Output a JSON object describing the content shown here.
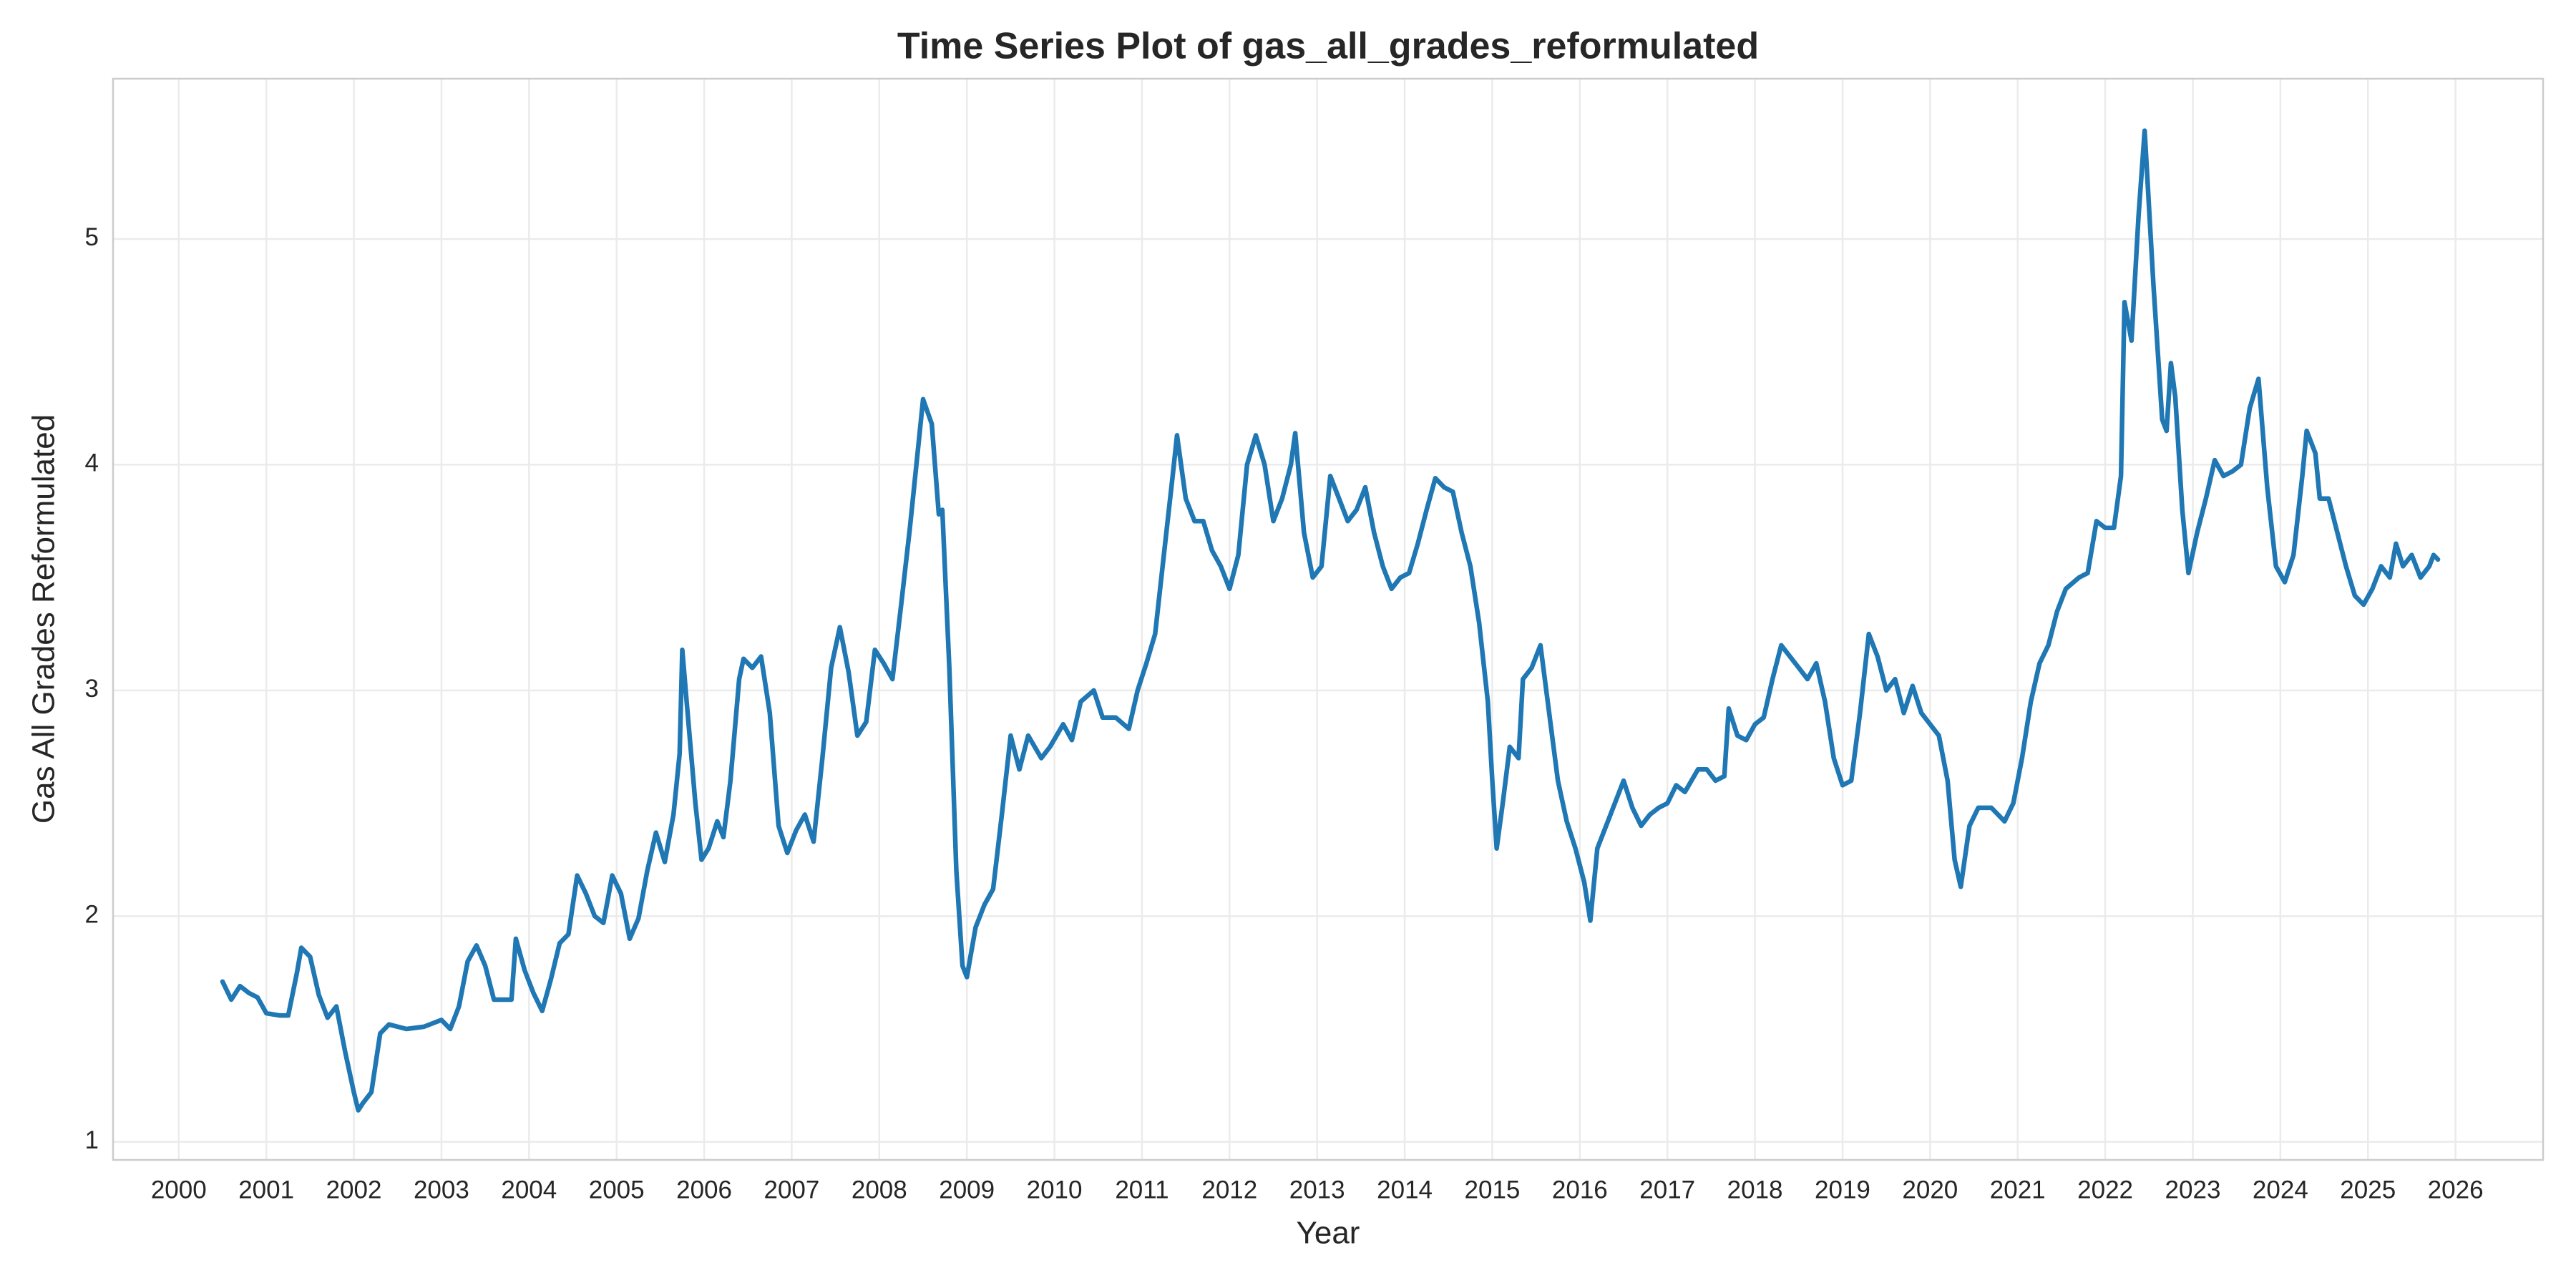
{
  "chart_data": {
    "type": "line",
    "title": "Time Series Plot of gas_all_grades_reformulated",
    "x_label": "Year",
    "y_label": "Gas All Grades Reformulated",
    "color": "#1f77b4",
    "grid": true,
    "xlim": [
      1999.25,
      2027.0
    ],
    "ylim": [
      0.92,
      5.71
    ],
    "xticks": [
      2000,
      2001,
      2002,
      2003,
      2004,
      2005,
      2006,
      2007,
      2008,
      2009,
      2010,
      2011,
      2012,
      2013,
      2014,
      2015,
      2016,
      2017,
      2018,
      2019,
      2020,
      2021,
      2022,
      2023,
      2024,
      2025,
      2026
    ],
    "yticks": [
      1,
      2,
      3,
      4,
      5
    ],
    "x": [
      2000.5,
      2000.6,
      2000.7,
      2000.8,
      2000.9,
      2001.0,
      2001.15,
      2001.25,
      2001.35,
      2001.4,
      2001.5,
      2001.6,
      2001.7,
      2001.8,
      2001.9,
      2002.0,
      2002.05,
      2002.1,
      2002.2,
      2002.3,
      2002.4,
      2002.6,
      2002.8,
      2003.0,
      2003.1,
      2003.2,
      2003.3,
      2003.4,
      2003.5,
      2003.6,
      2003.7,
      2003.8,
      2003.85,
      2003.95,
      2004.05,
      2004.15,
      2004.25,
      2004.35,
      2004.45,
      2004.55,
      2004.65,
      2004.75,
      2004.85,
      2004.95,
      2005.05,
      2005.15,
      2005.25,
      2005.35,
      2005.45,
      2005.55,
      2005.65,
      2005.72,
      2005.75,
      2005.8,
      2005.9,
      2005.97,
      2006.05,
      2006.15,
      2006.22,
      2006.3,
      2006.4,
      2006.45,
      2006.55,
      2006.65,
      2006.75,
      2006.85,
      2006.95,
      2007.05,
      2007.15,
      2007.25,
      2007.35,
      2007.45,
      2007.55,
      2007.65,
      2007.75,
      2007.85,
      2007.95,
      2008.05,
      2008.15,
      2008.25,
      2008.35,
      2008.45,
      2008.5,
      2008.6,
      2008.68,
      2008.72,
      2008.8,
      2008.88,
      2008.95,
      2009.0,
      2009.1,
      2009.2,
      2009.3,
      2009.4,
      2009.5,
      2009.6,
      2009.7,
      2009.85,
      2009.95,
      2010.1,
      2010.2,
      2010.3,
      2010.45,
      2010.55,
      2010.7,
      2010.85,
      2010.95,
      2011.05,
      2011.15,
      2011.25,
      2011.35,
      2011.4,
      2011.5,
      2011.6,
      2011.7,
      2011.8,
      2011.9,
      2012.0,
      2012.1,
      2012.2,
      2012.3,
      2012.4,
      2012.5,
      2012.6,
      2012.7,
      2012.75,
      2012.85,
      2012.95,
      2013.05,
      2013.15,
      2013.25,
      2013.35,
      2013.45,
      2013.55,
      2013.65,
      2013.75,
      2013.85,
      2013.95,
      2014.05,
      2014.15,
      2014.25,
      2014.35,
      2014.45,
      2014.55,
      2014.65,
      2014.75,
      2014.85,
      2014.95,
      2015.0,
      2015.05,
      2015.12,
      2015.2,
      2015.3,
      2015.35,
      2015.45,
      2015.55,
      2015.65,
      2015.75,
      2015.85,
      2015.95,
      2016.05,
      2016.12,
      2016.2,
      2016.3,
      2016.4,
      2016.5,
      2016.6,
      2016.7,
      2016.8,
      2016.9,
      2017.0,
      2017.1,
      2017.2,
      2017.35,
      2017.45,
      2017.55,
      2017.65,
      2017.7,
      2017.8,
      2017.9,
      2018.0,
      2018.1,
      2018.2,
      2018.3,
      2018.4,
      2018.5,
      2018.6,
      2018.7,
      2018.8,
      2018.9,
      2019.0,
      2019.1,
      2019.2,
      2019.3,
      2019.4,
      2019.5,
      2019.6,
      2019.7,
      2019.8,
      2019.9,
      2020.0,
      2020.1,
      2020.2,
      2020.28,
      2020.35,
      2020.45,
      2020.55,
      2020.7,
      2020.85,
      2020.95,
      2021.05,
      2021.15,
      2021.25,
      2021.35,
      2021.45,
      2021.55,
      2021.7,
      2021.8,
      2021.9,
      2022.0,
      2022.1,
      2022.18,
      2022.22,
      2022.3,
      2022.38,
      2022.45,
      2022.55,
      2022.65,
      2022.7,
      2022.75,
      2022.8,
      2022.88,
      2022.95,
      2023.05,
      2023.15,
      2023.25,
      2023.35,
      2023.45,
      2023.55,
      2023.65,
      2023.75,
      2023.85,
      2023.95,
      2024.05,
      2024.15,
      2024.25,
      2024.3,
      2024.4,
      2024.45,
      2024.55,
      2024.65,
      2024.75,
      2024.85,
      2024.95,
      2025.05,
      2025.15,
      2025.25,
      2025.32,
      2025.4,
      2025.5,
      2025.6,
      2025.7,
      2025.75,
      2025.8
    ],
    "values": [
      1.71,
      1.63,
      1.69,
      1.66,
      1.64,
      1.57,
      1.56,
      1.56,
      1.75,
      1.86,
      1.82,
      1.65,
      1.55,
      1.6,
      1.4,
      1.22,
      1.14,
      1.17,
      1.22,
      1.48,
      1.52,
      1.5,
      1.51,
      1.54,
      1.5,
      1.6,
      1.8,
      1.87,
      1.78,
      1.63,
      1.63,
      1.63,
      1.9,
      1.76,
      1.66,
      1.58,
      1.72,
      1.88,
      1.92,
      2.18,
      2.1,
      2.0,
      1.97,
      2.18,
      2.1,
      1.9,
      1.99,
      2.2,
      2.37,
      2.24,
      2.45,
      2.72,
      3.18,
      2.95,
      2.5,
      2.25,
      2.3,
      2.42,
      2.35,
      2.6,
      3.05,
      3.14,
      3.1,
      3.15,
      2.9,
      2.4,
      2.28,
      2.38,
      2.45,
      2.33,
      2.7,
      3.1,
      3.28,
      3.08,
      2.8,
      2.86,
      3.18,
      3.12,
      3.05,
      3.38,
      3.72,
      4.1,
      4.29,
      4.18,
      3.78,
      3.8,
      3.1,
      2.2,
      1.78,
      1.73,
      1.95,
      2.05,
      2.12,
      2.45,
      2.8,
      2.65,
      2.8,
      2.7,
      2.75,
      2.85,
      2.78,
      2.95,
      3.0,
      2.88,
      2.88,
      2.83,
      3.0,
      3.12,
      3.25,
      3.6,
      3.95,
      4.13,
      3.85,
      3.75,
      3.75,
      3.62,
      3.55,
      3.45,
      3.6,
      4.0,
      4.13,
      4.0,
      3.75,
      3.85,
      4.0,
      4.14,
      3.7,
      3.5,
      3.55,
      3.95,
      3.85,
      3.75,
      3.8,
      3.9,
      3.7,
      3.55,
      3.45,
      3.5,
      3.52,
      3.65,
      3.8,
      3.94,
      3.9,
      3.88,
      3.7,
      3.55,
      3.3,
      2.95,
      2.6,
      2.3,
      2.5,
      2.75,
      2.7,
      3.05,
      3.1,
      3.2,
      2.9,
      2.6,
      2.42,
      2.3,
      2.15,
      1.98,
      2.3,
      2.4,
      2.5,
      2.6,
      2.48,
      2.4,
      2.45,
      2.48,
      2.5,
      2.58,
      2.55,
      2.65,
      2.65,
      2.6,
      2.62,
      2.92,
      2.8,
      2.78,
      2.85,
      2.88,
      3.05,
      3.2,
      3.15,
      3.1,
      3.05,
      3.12,
      2.95,
      2.7,
      2.58,
      2.6,
      2.9,
      3.25,
      3.15,
      3.0,
      3.05,
      2.9,
      3.02,
      2.9,
      2.85,
      2.8,
      2.6,
      2.25,
      2.13,
      2.4,
      2.48,
      2.48,
      2.42,
      2.5,
      2.7,
      2.95,
      3.12,
      3.2,
      3.35,
      3.45,
      3.5,
      3.52,
      3.75,
      3.72,
      3.72,
      3.95,
      4.72,
      4.55,
      5.1,
      5.48,
      4.8,
      4.2,
      4.15,
      4.45,
      4.3,
      3.8,
      3.52,
      3.7,
      3.85,
      4.02,
      3.95,
      3.97,
      4.0,
      4.25,
      4.38,
      3.9,
      3.55,
      3.48,
      3.6,
      3.95,
      4.15,
      4.05,
      3.85,
      3.85,
      3.7,
      3.55,
      3.42,
      3.38,
      3.45,
      3.55,
      3.5,
      3.65,
      3.55,
      3.6,
      3.5,
      3.55,
      3.6,
      3.58
    ]
  }
}
